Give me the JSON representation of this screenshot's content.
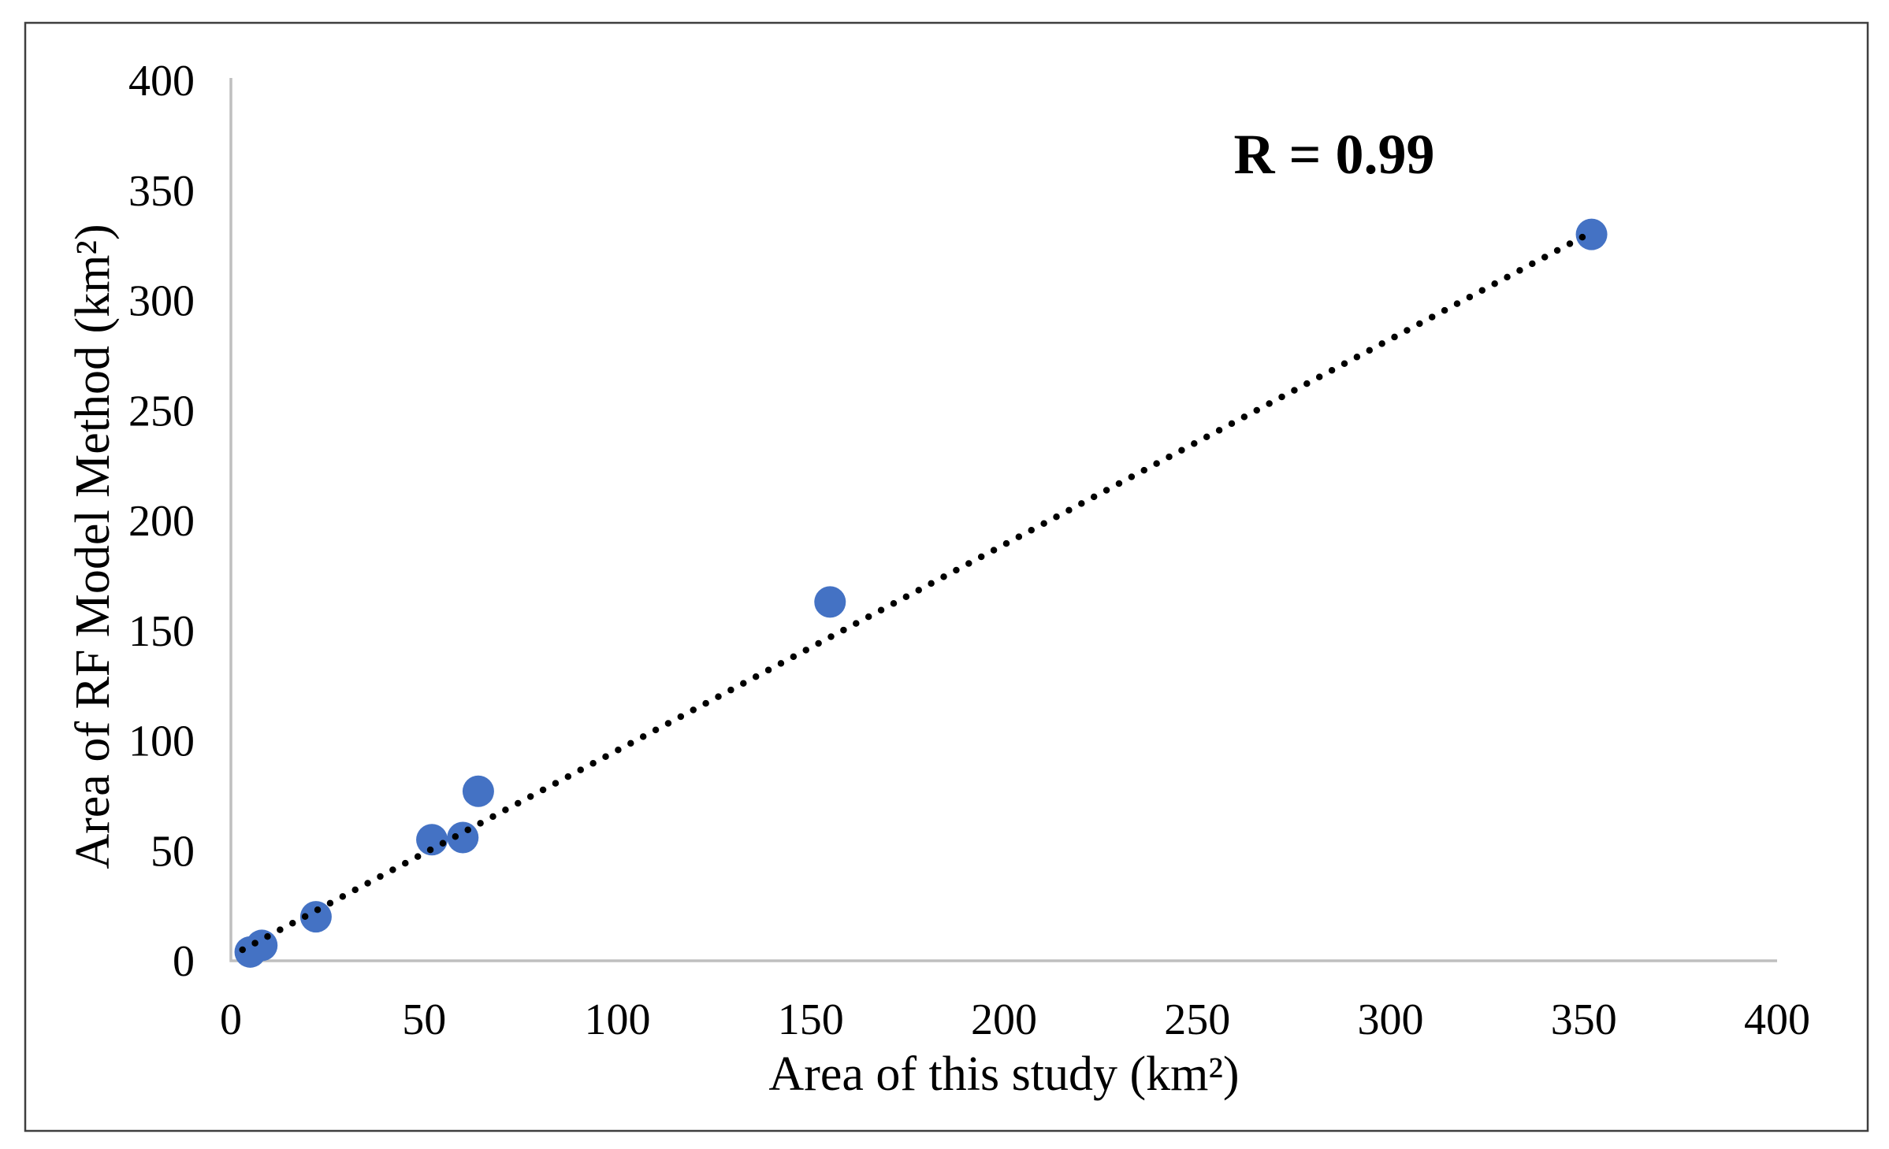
{
  "chart_data": {
    "type": "scatter",
    "xlabel": "Area of this study (km²)",
    "ylabel": "Area of RF Model Method (km²)",
    "annotation": "R = 0.99",
    "xlim": [
      0,
      400
    ],
    "ylim": [
      0,
      400
    ],
    "x_ticks": [
      0,
      50,
      100,
      150,
      200,
      250,
      300,
      350,
      400
    ],
    "y_ticks": [
      0,
      50,
      100,
      150,
      200,
      250,
      300,
      350,
      400
    ],
    "grid": false,
    "legend": "none",
    "series": [
      {
        "marker": "circle",
        "points": [
          [
            5,
            4
          ],
          [
            8,
            7
          ],
          [
            22,
            20
          ],
          [
            52,
            55
          ],
          [
            60,
            56
          ],
          [
            64,
            77
          ],
          [
            155,
            163
          ],
          [
            352,
            330
          ]
        ]
      }
    ],
    "trendline": {
      "style": "dotted",
      "points": [
        [
          3,
          5
        ],
        [
          352,
          331
        ]
      ]
    },
    "colors": {
      "marker": "#4472C4",
      "trendline": "#000000",
      "axis_line": "#BFBFBF",
      "text": "#000000",
      "frame_border": "#3F3F3F",
      "background": "#FFFFFF"
    }
  }
}
